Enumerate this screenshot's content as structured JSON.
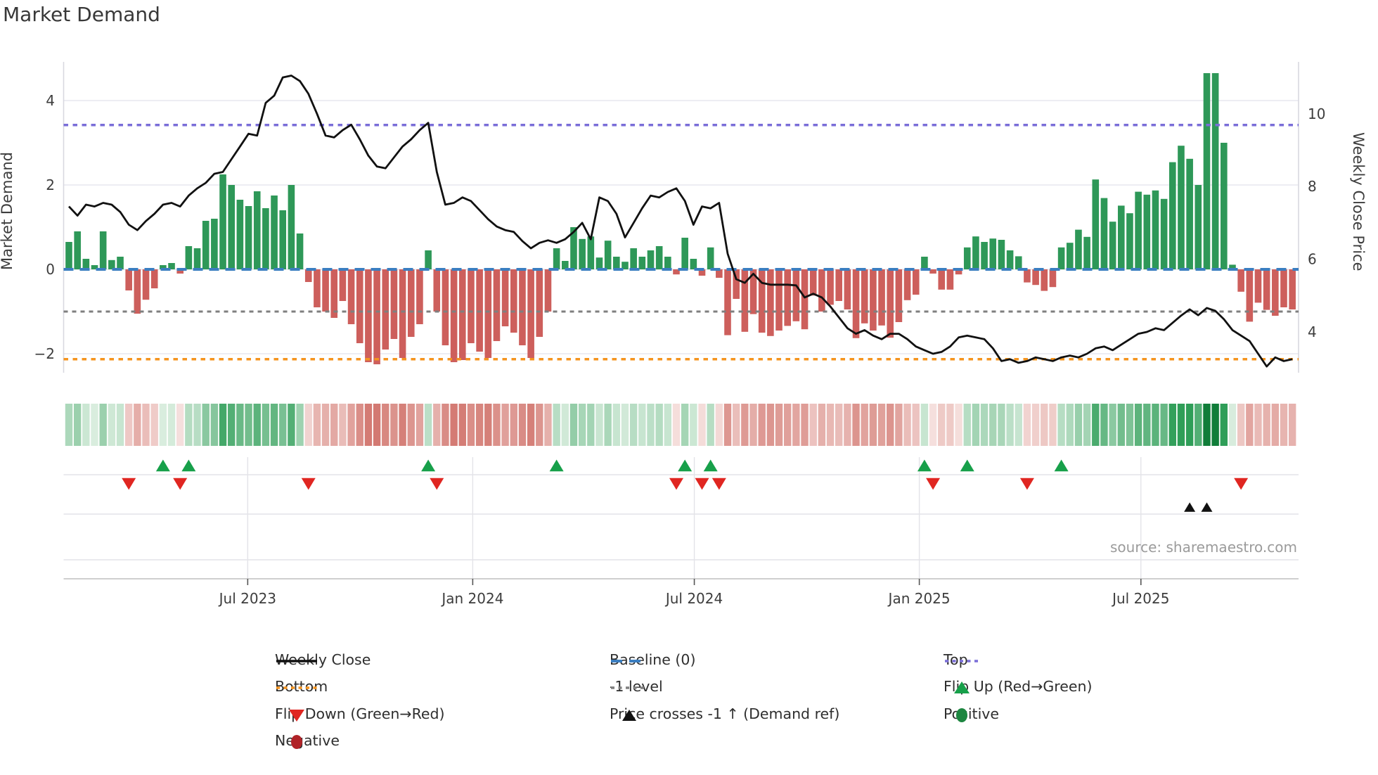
{
  "title": "Market Demand",
  "source": "source: sharemaestro.com",
  "axes": {
    "y_left_label": "Market Demand",
    "y_right_label": "Weekly Close Price",
    "y_left_ticks": [
      {
        "label": "4",
        "v": 4
      },
      {
        "label": "2",
        "v": 2
      },
      {
        "label": "0",
        "v": 0
      },
      {
        "label": "−2",
        "v": -2
      }
    ],
    "y_right_ticks": [
      {
        "label": "10",
        "v": 10
      },
      {
        "label": "8",
        "v": 8
      },
      {
        "label": "6",
        "v": 6
      },
      {
        "label": "4",
        "v": 4
      }
    ],
    "x_ticks": [
      {
        "label": "Jul 2023",
        "week": 20.9
      },
      {
        "label": "Jan 2024",
        "week": 47.2
      },
      {
        "label": "Jul 2024",
        "week": 73.1
      },
      {
        "label": "Jan 2025",
        "week": 99.4
      },
      {
        "label": "Jul 2025",
        "week": 125.3
      }
    ]
  },
  "colors": {
    "bar_positive": "#2e9858",
    "bar_negative": "#cd5f5c",
    "price_line": "#111111",
    "baseline": "#3b7ec0",
    "top_line": "#7a6ed8",
    "bottom_line": "#f5941f",
    "minus_one": "#7f7f7f",
    "flip_up": "#17a04a",
    "flip_down": "#e02621",
    "price_cross": "#111111",
    "positive_dot": "#1d8640",
    "negative_dot": "#b02328",
    "grid": "#e7e7ef",
    "spine": "#d8d8e0",
    "tick_text": "#3d3d3d"
  },
  "legend": {
    "weekly_close": "Weekly Close",
    "baseline": "Baseline (0)",
    "top": "Top",
    "bottom": "Bottom",
    "minus_one": "-1 level",
    "flip_up": "Flip Up (Red→Green)",
    "flip_down": "Flip Down (Green→Red)",
    "price_cross": "Price crosses -1 ↑ (Demand ref)",
    "positive": "Positive",
    "negative": "Negative"
  },
  "chart_data": {
    "type": "bar",
    "title": "Market Demand",
    "frequency": "weekly",
    "start_date": "2023-02-06",
    "xlabel": "",
    "ylabel_left": "Market Demand",
    "ylabel_right": "Weekly Close Price",
    "ylim_left": [
      -2.45,
      4.92
    ],
    "grid": true,
    "legend_position": "bottom",
    "reference_lines": {
      "baseline": 0,
      "top": 3.42,
      "bottom": -2.13,
      "minus_one_level": -1
    },
    "series": [
      {
        "name": "Market Demand",
        "type": "bar",
        "axis": "left",
        "values": [
          0.65,
          0.9,
          0.25,
          0.1,
          0.9,
          0.22,
          0.3,
          -0.5,
          -1.05,
          -0.72,
          -0.45,
          0.1,
          0.15,
          -0.1,
          0.55,
          0.5,
          1.15,
          1.2,
          2.25,
          2.0,
          1.65,
          1.5,
          1.85,
          1.45,
          1.75,
          1.4,
          2.0,
          0.85,
          -0.3,
          -0.9,
          -1.0,
          -1.15,
          -0.75,
          -1.3,
          -1.75,
          -2.2,
          -2.25,
          -1.9,
          -1.65,
          -2.1,
          -1.6,
          -1.3,
          0.45,
          -1.0,
          -1.8,
          -2.2,
          -2.15,
          -1.75,
          -1.95,
          -2.1,
          -1.7,
          -1.35,
          -1.5,
          -1.8,
          -2.1,
          -1.6,
          -1.0,
          0.5,
          0.2,
          1.0,
          0.72,
          0.78,
          0.28,
          0.68,
          0.3,
          0.18,
          0.5,
          0.3,
          0.45,
          0.55,
          0.3,
          -0.12,
          0.75,
          0.25,
          -0.15,
          0.52,
          -0.2,
          -1.56,
          -0.7,
          -1.48,
          -1.06,
          -1.5,
          -1.58,
          -1.45,
          -1.34,
          -1.23,
          -1.42,
          -0.62,
          -1.0,
          -0.84,
          -0.75,
          -0.95,
          -1.63,
          -1.28,
          -1.45,
          -1.33,
          -1.62,
          -1.25,
          -0.73,
          -0.6,
          0.3,
          -0.1,
          -0.48,
          -0.48,
          -0.12,
          0.52,
          0.78,
          0.65,
          0.73,
          0.7,
          0.45,
          0.31,
          -0.31,
          -0.37,
          -0.51,
          -0.42,
          0.52,
          0.63,
          0.94,
          0.77,
          2.13,
          1.69,
          1.13,
          1.51,
          1.33,
          1.84,
          1.77,
          1.87,
          1.67,
          2.54,
          2.93,
          2.62,
          2.0,
          4.65,
          4.65,
          3.0,
          0.11,
          -0.53,
          -1.24,
          -0.79,
          -0.96,
          -1.1,
          -0.9,
          -0.95
        ]
      },
      {
        "name": "Weekly Close",
        "type": "line",
        "axis": "right",
        "values": [
          7.45,
          7.2,
          7.5,
          7.45,
          7.55,
          7.5,
          7.3,
          6.95,
          6.8,
          7.05,
          7.25,
          7.5,
          7.55,
          7.45,
          7.75,
          7.95,
          8.1,
          8.35,
          8.4,
          8.75,
          9.1,
          9.45,
          9.4,
          10.3,
          10.5,
          11.0,
          11.05,
          10.9,
          10.55,
          10.0,
          9.4,
          9.35,
          9.55,
          9.7,
          9.3,
          8.85,
          8.55,
          8.5,
          8.8,
          9.1,
          9.3,
          9.55,
          9.75,
          8.4,
          7.5,
          7.55,
          7.7,
          7.6,
          7.35,
          7.1,
          6.9,
          6.8,
          6.75,
          6.5,
          6.3,
          6.45,
          6.52,
          6.45,
          6.55,
          6.75,
          7.0,
          6.55,
          7.7,
          7.6,
          7.25,
          6.6,
          7.0,
          7.4,
          7.75,
          7.7,
          7.85,
          7.95,
          7.6,
          6.95,
          7.45,
          7.4,
          7.55,
          6.15,
          5.45,
          5.35,
          5.6,
          5.35,
          5.3,
          5.3,
          5.3,
          5.28,
          4.95,
          5.05,
          4.95,
          4.7,
          4.4,
          4.1,
          3.95,
          4.05,
          3.9,
          3.8,
          3.95,
          3.95,
          3.8,
          3.6,
          3.5,
          3.4,
          3.45,
          3.6,
          3.85,
          3.9,
          3.85,
          3.8,
          3.55,
          3.2,
          3.25,
          3.15,
          3.2,
          3.3,
          3.25,
          3.2,
          3.3,
          3.35,
          3.3,
          3.4,
          3.55,
          3.6,
          3.5,
          3.65,
          3.8,
          3.95,
          4.0,
          4.1,
          4.05,
          4.25,
          4.45,
          4.62,
          4.46,
          4.66,
          4.58,
          4.35,
          4.05,
          3.9,
          3.75,
          3.4,
          3.05,
          3.3,
          3.2,
          3.25
        ]
      }
    ],
    "markers": {
      "flip_up_weeks": [
        11,
        14,
        42,
        57,
        72,
        75,
        100,
        105,
        116
      ],
      "flip_down_weeks": [
        7,
        13,
        28,
        43,
        71,
        74,
        76,
        101,
        112,
        137
      ],
      "price_cross_up_weeks": [
        131,
        133
      ]
    },
    "heatmap_strip": "same sign/intensity as Market Demand bar values"
  }
}
